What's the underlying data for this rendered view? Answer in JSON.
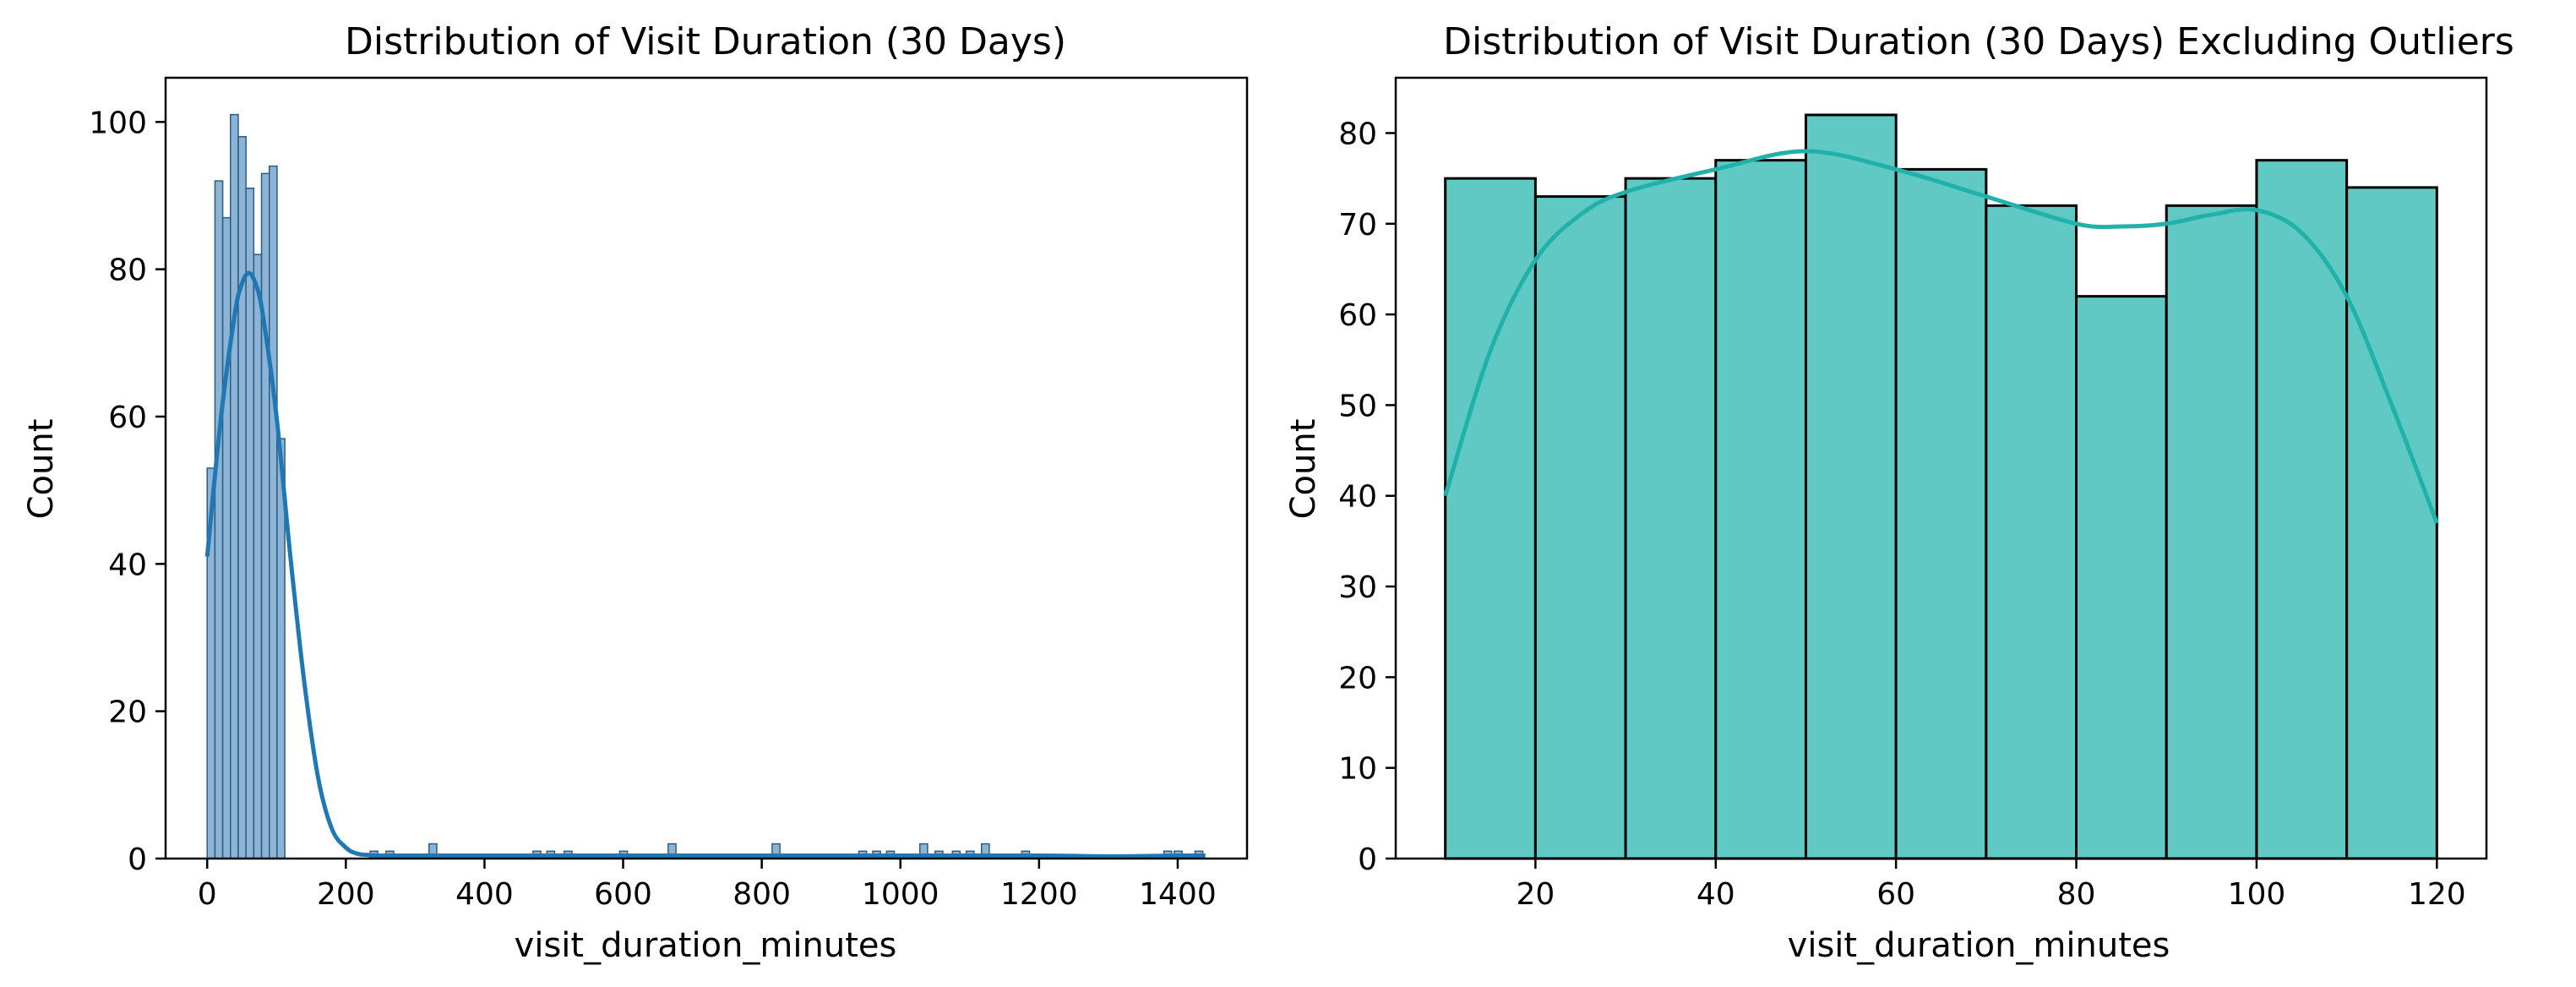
{
  "chart_data": [
    {
      "type": "bar",
      "title": "Distribution of Visit Duration (30 Days)",
      "xlabel": "visit_duration_minutes",
      "ylabel": "Count",
      "xlim": [
        -60,
        1500
      ],
      "ylim": [
        0,
        106
      ],
      "xticks": [
        0,
        200,
        400,
        600,
        800,
        1000,
        1200,
        1400
      ],
      "yticks": [
        0,
        20,
        40,
        60,
        80,
        100
      ],
      "grid": false,
      "color": "#1f77b4",
      "bar_color": "#8db3d5",
      "bin_width": 11.2,
      "bins": [
        {
          "x": 0,
          "count": 53
        },
        {
          "x": 11.2,
          "count": 92
        },
        {
          "x": 22.4,
          "count": 87
        },
        {
          "x": 33.6,
          "count": 101
        },
        {
          "x": 44.8,
          "count": 98
        },
        {
          "x": 56,
          "count": 91
        },
        {
          "x": 67.2,
          "count": 82
        },
        {
          "x": 78.4,
          "count": 93
        },
        {
          "x": 89.6,
          "count": 94
        },
        {
          "x": 100.8,
          "count": 57
        },
        {
          "x": 235,
          "count": 1
        },
        {
          "x": 258,
          "count": 1
        },
        {
          "x": 320,
          "count": 2
        },
        {
          "x": 470,
          "count": 1
        },
        {
          "x": 490,
          "count": 1
        },
        {
          "x": 515,
          "count": 1
        },
        {
          "x": 595,
          "count": 1
        },
        {
          "x": 665,
          "count": 2
        },
        {
          "x": 815,
          "count": 2
        },
        {
          "x": 940,
          "count": 1
        },
        {
          "x": 960,
          "count": 1
        },
        {
          "x": 980,
          "count": 1
        },
        {
          "x": 1028,
          "count": 2
        },
        {
          "x": 1050,
          "count": 1
        },
        {
          "x": 1075,
          "count": 1
        },
        {
          "x": 1095,
          "count": 1
        },
        {
          "x": 1117,
          "count": 2
        },
        {
          "x": 1175,
          "count": 1
        },
        {
          "x": 1380,
          "count": 1
        },
        {
          "x": 1395,
          "count": 1
        },
        {
          "x": 1425,
          "count": 1
        }
      ],
      "kde": {
        "x": [
          0,
          20,
          40,
          50,
          60,
          70,
          80,
          100,
          120,
          140,
          160,
          180,
          200,
          215,
          230,
          260,
          400,
          600,
          800,
          1000,
          1200,
          1300,
          1400,
          1440
        ],
        "y": [
          41,
          60,
          74,
          78,
          79.5,
          78,
          74,
          60,
          41,
          24,
          11,
          4,
          1.5,
          0.7,
          0.5,
          0.4,
          0.4,
          0.4,
          0.4,
          0.4,
          0.4,
          0.3,
          0.4,
          0.4
        ]
      }
    },
    {
      "type": "bar",
      "title": "Distribution of Visit Duration (30 Days) Excluding Outliers",
      "xlabel": "visit_duration_minutes",
      "ylabel": "Count",
      "xlim": [
        4.5,
        125.5
      ],
      "ylim": [
        0,
        86.1
      ],
      "xticks": [
        20,
        40,
        60,
        80,
        100,
        120
      ],
      "yticks": [
        0,
        10,
        20,
        30,
        40,
        50,
        60,
        70,
        80
      ],
      "grid": false,
      "color": "#20b2aa",
      "bar_color": "#61c9c3",
      "bin_width": 10,
      "bins": [
        {
          "x": 10,
          "count": 75
        },
        {
          "x": 20,
          "count": 73
        },
        {
          "x": 30,
          "count": 75
        },
        {
          "x": 40,
          "count": 77
        },
        {
          "x": 50,
          "count": 82
        },
        {
          "x": 60,
          "count": 76
        },
        {
          "x": 70,
          "count": 72
        },
        {
          "x": 80,
          "count": 62
        },
        {
          "x": 90,
          "count": 72
        },
        {
          "x": 100,
          "count": 77
        },
        {
          "x": 110,
          "count": 74
        }
      ],
      "kde": {
        "x": [
          10,
          15,
          20,
          25,
          30,
          40,
          50,
          60,
          70,
          80,
          85,
          90,
          95,
          100,
          105,
          110,
          115,
          120
        ],
        "y": [
          40,
          56,
          66,
          71,
          73.5,
          76,
          78,
          76,
          73,
          70,
          69.7,
          70,
          71,
          71.5,
          69,
          62,
          50,
          37
        ]
      }
    }
  ]
}
